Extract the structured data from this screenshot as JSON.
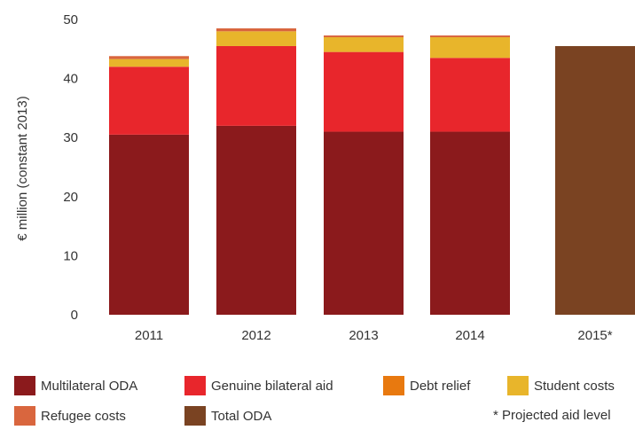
{
  "chart_data": {
    "type": "bar",
    "stacked": true,
    "categories": [
      "2011",
      "2012",
      "2013",
      "2014",
      "2015*"
    ],
    "ylabel": "€ million (constant 2013)",
    "ylim": [
      0,
      50
    ],
    "yticks": [
      0,
      10,
      20,
      30,
      40,
      50
    ],
    "grid": false,
    "legend_position": "bottom",
    "series": [
      {
        "name": "Multilateral ODA",
        "color": "#8b1a1c",
        "values": [
          30.5,
          32,
          31,
          31,
          0
        ]
      },
      {
        "name": "Genuine bilateral aid",
        "color": "#e8262c",
        "values": [
          11.5,
          13.5,
          13.5,
          12.5,
          0
        ]
      },
      {
        "name": "Debt relief",
        "color": "#e8790f",
        "values": [
          0,
          0,
          0,
          0,
          0
        ]
      },
      {
        "name": "Student costs",
        "color": "#e8b52b",
        "values": [
          1.3,
          2.5,
          2.5,
          3.5,
          0
        ]
      },
      {
        "name": "Refugee costs",
        "color": "#d9663e",
        "values": [
          0.5,
          0.5,
          0.3,
          0.3,
          0
        ]
      },
      {
        "name": "Total ODA",
        "color": "#7a4322",
        "values": [
          0,
          0,
          0,
          0,
          45.5
        ]
      }
    ],
    "note": "* Projected aid level"
  }
}
